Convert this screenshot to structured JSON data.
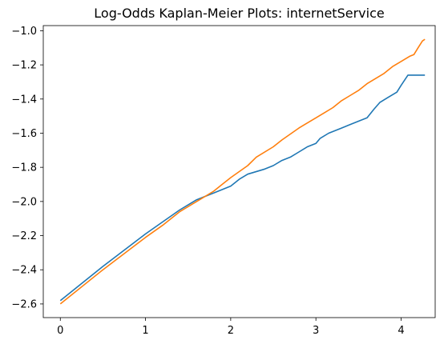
{
  "chart_data": {
    "type": "line",
    "title": "Log-Odds Kaplan-Meier Plots: internetService",
    "xlabel": "",
    "ylabel": "",
    "xlim": [
      -0.2,
      4.4
    ],
    "ylim": [
      -2.68,
      -0.97
    ],
    "xticks": [
      0,
      1,
      2,
      3,
      4
    ],
    "yticks": [
      -2.6,
      -2.4,
      -2.2,
      -2.0,
      -1.8,
      -1.6,
      -1.4,
      -1.2,
      -1.0
    ],
    "xtick_labels": [
      "0",
      "1",
      "2",
      "3",
      "4"
    ],
    "ytick_labels": [
      "−2.6",
      "−2.4",
      "−2.2",
      "−2.0",
      "−1.8",
      "−1.6",
      "−1.4",
      "−1.2",
      "−1.0"
    ],
    "grid": false,
    "legend": false,
    "series": [
      {
        "color": "#1f77b4",
        "points": [
          [
            0,
            -2.58
          ],
          [
            0.5,
            -2.38
          ],
          [
            1.0,
            -2.19
          ],
          [
            1.4,
            -2.05
          ],
          [
            1.6,
            -1.99
          ],
          [
            1.8,
            -1.95
          ],
          [
            2.0,
            -1.91
          ],
          [
            2.1,
            -1.87
          ],
          [
            2.2,
            -1.84
          ],
          [
            2.4,
            -1.81
          ],
          [
            2.5,
            -1.79
          ],
          [
            2.6,
            -1.76
          ],
          [
            2.7,
            -1.74
          ],
          [
            2.8,
            -1.71
          ],
          [
            2.9,
            -1.68
          ],
          [
            3.0,
            -1.66
          ],
          [
            3.05,
            -1.63
          ],
          [
            3.15,
            -1.6
          ],
          [
            3.3,
            -1.57
          ],
          [
            3.4,
            -1.55
          ],
          [
            3.5,
            -1.53
          ],
          [
            3.6,
            -1.51
          ],
          [
            3.68,
            -1.46
          ],
          [
            3.75,
            -1.42
          ],
          [
            3.85,
            -1.39
          ],
          [
            3.95,
            -1.36
          ],
          [
            4.0,
            -1.32
          ],
          [
            4.08,
            -1.26
          ],
          [
            4.15,
            -1.26
          ],
          [
            4.28,
            -1.26
          ]
        ]
      },
      {
        "color": "#ff7f0e",
        "points": [
          [
            0,
            -2.6
          ],
          [
            0.5,
            -2.4
          ],
          [
            1.0,
            -2.21
          ],
          [
            1.2,
            -2.14
          ],
          [
            1.4,
            -2.06
          ],
          [
            1.6,
            -2.0
          ],
          [
            1.8,
            -1.94
          ],
          [
            1.9,
            -1.9
          ],
          [
            2.0,
            -1.86
          ],
          [
            2.2,
            -1.79
          ],
          [
            2.3,
            -1.74
          ],
          [
            2.5,
            -1.68
          ],
          [
            2.6,
            -1.64
          ],
          [
            2.8,
            -1.57
          ],
          [
            2.9,
            -1.54
          ],
          [
            3.0,
            -1.51
          ],
          [
            3.1,
            -1.48
          ],
          [
            3.2,
            -1.45
          ],
          [
            3.3,
            -1.41
          ],
          [
            3.4,
            -1.38
          ],
          [
            3.5,
            -1.35
          ],
          [
            3.6,
            -1.31
          ],
          [
            3.7,
            -1.28
          ],
          [
            3.8,
            -1.25
          ],
          [
            3.9,
            -1.21
          ],
          [
            4.0,
            -1.18
          ],
          [
            4.1,
            -1.15
          ],
          [
            4.15,
            -1.14
          ],
          [
            4.2,
            -1.1
          ],
          [
            4.25,
            -1.06
          ],
          [
            4.28,
            -1.05
          ]
        ]
      }
    ]
  }
}
